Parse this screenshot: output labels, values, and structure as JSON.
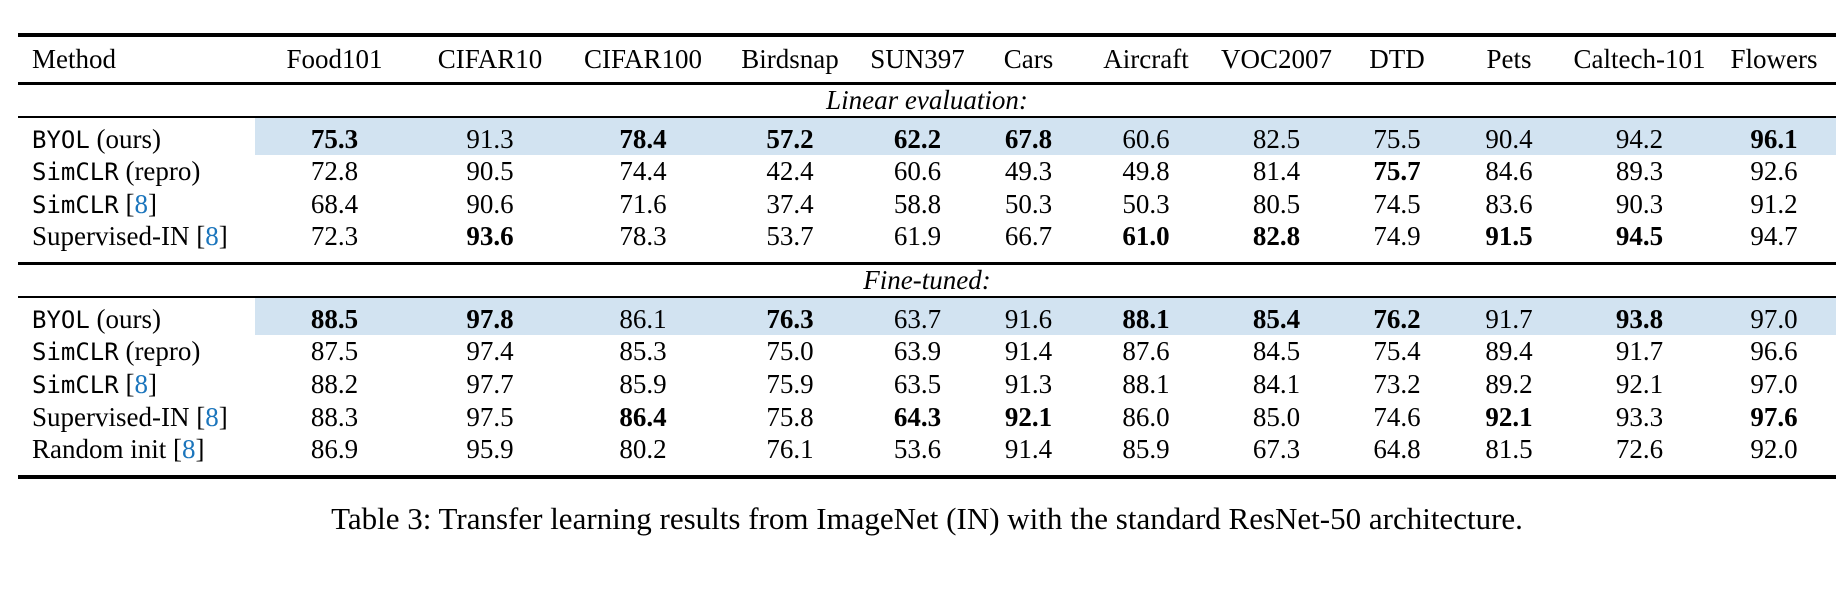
{
  "colors": {
    "row_highlight": "#d2e3f1",
    "citation_blue": "#1b75bc",
    "rule_black": "#000000"
  },
  "caption": "Table 3: Transfer learning results from ImageNet (IN) with the standard ResNet-50 architecture.",
  "table": {
    "columns": [
      "Method",
      "Food101",
      "CIFAR10",
      "CIFAR100",
      "Birdsnap",
      "SUN397",
      "Cars",
      "Aircraft",
      "VOC2007",
      "DTD",
      "Pets",
      "Caltech-101",
      "Flowers"
    ],
    "sections": [
      {
        "label": "Linear evaluation:",
        "rows": [
          {
            "method_parts": [
              {
                "text": "BYOL",
                "mono": true
              },
              {
                "text": " (ours)"
              }
            ],
            "highlight": true,
            "values": [
              {
                "v": "75.3",
                "b": true
              },
              {
                "v": "91.3"
              },
              {
                "v": "78.4",
                "b": true
              },
              {
                "v": "57.2",
                "b": true
              },
              {
                "v": "62.2",
                "b": true
              },
              {
                "v": "67.8",
                "b": true
              },
              {
                "v": "60.6"
              },
              {
                "v": "82.5"
              },
              {
                "v": "75.5"
              },
              {
                "v": "90.4"
              },
              {
                "v": "94.2"
              },
              {
                "v": "96.1",
                "b": true
              }
            ]
          },
          {
            "method_parts": [
              {
                "text": "SimCLR",
                "mono": true
              },
              {
                "text": " (repro)"
              }
            ],
            "highlight": false,
            "values": [
              {
                "v": "72.8"
              },
              {
                "v": "90.5"
              },
              {
                "v": "74.4"
              },
              {
                "v": "42.4"
              },
              {
                "v": "60.6"
              },
              {
                "v": "49.3"
              },
              {
                "v": "49.8"
              },
              {
                "v": "81.4"
              },
              {
                "v": "75.7",
                "b": true
              },
              {
                "v": "84.6"
              },
              {
                "v": "89.3"
              },
              {
                "v": "92.6"
              }
            ]
          },
          {
            "method_parts": [
              {
                "text": "SimCLR",
                "mono": true
              },
              {
                "text": " ["
              },
              {
                "text": "8",
                "cite": true
              },
              {
                "text": "]"
              }
            ],
            "highlight": false,
            "values": [
              {
                "v": "68.4"
              },
              {
                "v": "90.6"
              },
              {
                "v": "71.6"
              },
              {
                "v": "37.4"
              },
              {
                "v": "58.8"
              },
              {
                "v": "50.3"
              },
              {
                "v": "50.3"
              },
              {
                "v": "80.5"
              },
              {
                "v": "74.5"
              },
              {
                "v": "83.6"
              },
              {
                "v": "90.3"
              },
              {
                "v": "91.2"
              }
            ]
          },
          {
            "method_parts": [
              {
                "text": "Supervised-IN ["
              },
              {
                "text": "8",
                "cite": true
              },
              {
                "text": "]"
              }
            ],
            "highlight": false,
            "values": [
              {
                "v": "72.3"
              },
              {
                "v": "93.6",
                "b": true
              },
              {
                "v": "78.3"
              },
              {
                "v": "53.7"
              },
              {
                "v": "61.9"
              },
              {
                "v": "66.7"
              },
              {
                "v": "61.0",
                "b": true
              },
              {
                "v": "82.8",
                "b": true
              },
              {
                "v": "74.9"
              },
              {
                "v": "91.5",
                "b": true
              },
              {
                "v": "94.5",
                "b": true
              },
              {
                "v": "94.7"
              }
            ]
          }
        ]
      },
      {
        "label": "Fine-tuned:",
        "rows": [
          {
            "method_parts": [
              {
                "text": "BYOL",
                "mono": true
              },
              {
                "text": " (ours)"
              }
            ],
            "highlight": true,
            "values": [
              {
                "v": "88.5",
                "b": true
              },
              {
                "v": "97.8",
                "b": true
              },
              {
                "v": "86.1"
              },
              {
                "v": "76.3",
                "b": true
              },
              {
                "v": "63.7"
              },
              {
                "v": "91.6"
              },
              {
                "v": "88.1",
                "b": true
              },
              {
                "v": "85.4",
                "b": true
              },
              {
                "v": "76.2",
                "b": true
              },
              {
                "v": "91.7"
              },
              {
                "v": "93.8",
                "b": true
              },
              {
                "v": "97.0"
              }
            ]
          },
          {
            "method_parts": [
              {
                "text": "SimCLR",
                "mono": true
              },
              {
                "text": " (repro)"
              }
            ],
            "highlight": false,
            "values": [
              {
                "v": "87.5"
              },
              {
                "v": "97.4"
              },
              {
                "v": "85.3"
              },
              {
                "v": "75.0"
              },
              {
                "v": "63.9"
              },
              {
                "v": "91.4"
              },
              {
                "v": "87.6"
              },
              {
                "v": "84.5"
              },
              {
                "v": "75.4"
              },
              {
                "v": "89.4"
              },
              {
                "v": "91.7"
              },
              {
                "v": "96.6"
              }
            ]
          },
          {
            "method_parts": [
              {
                "text": "SimCLR",
                "mono": true
              },
              {
                "text": " ["
              },
              {
                "text": "8",
                "cite": true
              },
              {
                "text": "]"
              }
            ],
            "highlight": false,
            "values": [
              {
                "v": "88.2"
              },
              {
                "v": "97.7"
              },
              {
                "v": "85.9"
              },
              {
                "v": "75.9"
              },
              {
                "v": "63.5"
              },
              {
                "v": "91.3"
              },
              {
                "v": "88.1"
              },
              {
                "v": "84.1"
              },
              {
                "v": "73.2"
              },
              {
                "v": "89.2"
              },
              {
                "v": "92.1"
              },
              {
                "v": "97.0"
              }
            ]
          },
          {
            "method_parts": [
              {
                "text": "Supervised-IN ["
              },
              {
                "text": "8",
                "cite": true
              },
              {
                "text": "]"
              }
            ],
            "highlight": false,
            "values": [
              {
                "v": "88.3"
              },
              {
                "v": "97.5"
              },
              {
                "v": "86.4",
                "b": true
              },
              {
                "v": "75.8"
              },
              {
                "v": "64.3",
                "b": true
              },
              {
                "v": "92.1",
                "b": true
              },
              {
                "v": "86.0"
              },
              {
                "v": "85.0"
              },
              {
                "v": "74.6"
              },
              {
                "v": "92.1",
                "b": true
              },
              {
                "v": "93.3"
              },
              {
                "v": "97.6",
                "b": true
              }
            ]
          },
          {
            "method_parts": [
              {
                "text": "Random init ["
              },
              {
                "text": "8",
                "cite": true
              },
              {
                "text": "]"
              }
            ],
            "highlight": false,
            "values": [
              {
                "v": "86.9"
              },
              {
                "v": "95.9"
              },
              {
                "v": "80.2"
              },
              {
                "v": "76.1"
              },
              {
                "v": "53.6"
              },
              {
                "v": "91.4"
              },
              {
                "v": "85.9"
              },
              {
                "v": "67.3"
              },
              {
                "v": "64.8"
              },
              {
                "v": "81.5"
              },
              {
                "v": "72.6"
              },
              {
                "v": "92.0"
              }
            ]
          }
        ]
      }
    ]
  }
}
